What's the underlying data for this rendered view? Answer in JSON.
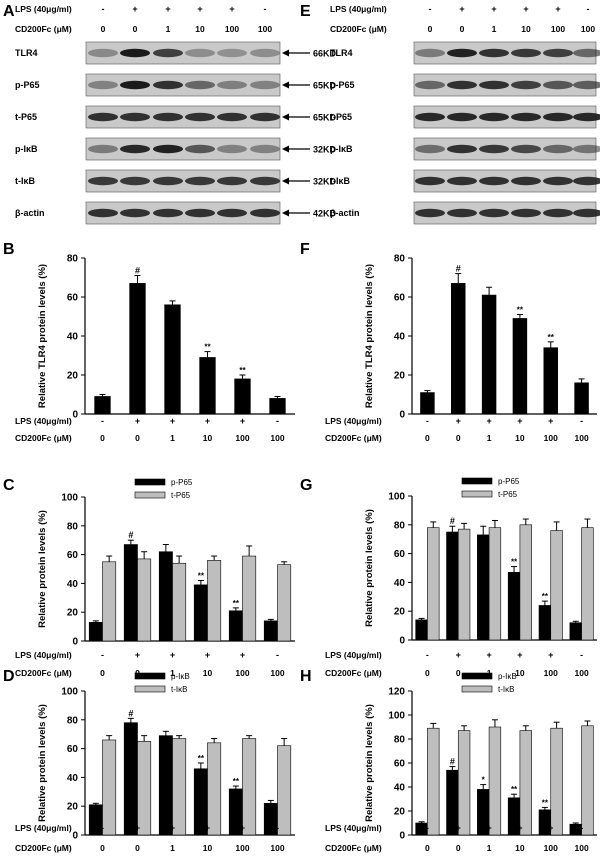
{
  "panel_letters": [
    "A",
    "B",
    "C",
    "D",
    "E",
    "F",
    "G",
    "H"
  ],
  "treatments": {
    "left": {
      "lps_label": "LPS (40μg/ml)",
      "cd_label": "CD200Fc (μM)",
      "lps": [
        "-",
        "+",
        "+",
        "+",
        "+",
        "-"
      ],
      "cd": [
        "0",
        "0",
        "1",
        "10",
        "100",
        "100"
      ]
    },
    "right": {
      "lps_label": "LPS (40μg/ml)",
      "cd_label": "CD200Fc (μM)",
      "lps": [
        "-",
        "+",
        "+",
        "+",
        "+",
        "-"
      ],
      "cd": [
        "0",
        "0",
        "1",
        "10",
        "100",
        "100"
      ]
    }
  },
  "blots": {
    "left": {
      "rows": [
        {
          "label": "TLR4",
          "kd": "66KD",
          "intensity": [
            0.25,
            1.0,
            0.75,
            0.22,
            0.2,
            0.22
          ]
        },
        {
          "label": "p-P65",
          "kd": "65KD",
          "intensity": [
            0.3,
            1.0,
            0.85,
            0.5,
            0.32,
            0.3
          ]
        },
        {
          "label": "t-P65",
          "kd": "65KD",
          "intensity": [
            0.85,
            0.85,
            0.85,
            0.85,
            0.85,
            0.85
          ]
        },
        {
          "label": "p-IκB",
          "kd": "32KD",
          "intensity": [
            0.35,
            0.9,
            0.95,
            0.6,
            0.3,
            0.3
          ]
        },
        {
          "label": "t-IκB",
          "kd": "32KD",
          "intensity": [
            0.8,
            0.8,
            0.8,
            0.8,
            0.8,
            0.8
          ]
        },
        {
          "label": "β-actin",
          "kd": "42KD",
          "intensity": [
            0.85,
            0.85,
            0.85,
            0.85,
            0.85,
            0.85
          ]
        }
      ]
    },
    "right": {
      "rows": [
        {
          "label": "TLR4",
          "kd": "",
          "intensity": [
            0.35,
            0.95,
            0.85,
            0.8,
            0.75,
            0.5
          ]
        },
        {
          "label": "p-P65",
          "kd": "",
          "intensity": [
            0.5,
            0.85,
            0.85,
            0.75,
            0.6,
            0.55
          ]
        },
        {
          "label": "t-P65",
          "kd": "",
          "intensity": [
            0.9,
            0.9,
            0.9,
            0.9,
            0.9,
            0.9
          ]
        },
        {
          "label": "p-IκB",
          "kd": "",
          "intensity": [
            0.45,
            0.85,
            0.8,
            0.7,
            0.5,
            0.4
          ]
        },
        {
          "label": "t-IκB",
          "kd": "",
          "intensity": [
            0.85,
            0.85,
            0.85,
            0.85,
            0.85,
            0.85
          ]
        },
        {
          "label": "β-actin",
          "kd": "",
          "intensity": [
            0.85,
            0.85,
            0.85,
            0.85,
            0.85,
            0.85
          ]
        }
      ]
    }
  },
  "colors": {
    "bar_black": "#000000",
    "bar_gray": "#bebebe",
    "blot_bg": "#c9c9c9",
    "band": "#1a1a1a"
  },
  "chart_data": [
    {
      "id": "B",
      "type": "bar",
      "side": "left",
      "categories": [
        "1",
        "2",
        "3",
        "4",
        "5",
        "6"
      ],
      "ylabel": "Relative TLR4 protein levels (%)",
      "ylim": [
        0,
        80
      ],
      "yticks": [
        0,
        20,
        40,
        60,
        80
      ],
      "series": [
        {
          "values": [
            9,
            67,
            56,
            29,
            18,
            8
          ],
          "errors": [
            1,
            4,
            2,
            3,
            2,
            1
          ],
          "color": "#000000"
        }
      ],
      "annotations": [
        "",
        "#",
        "",
        "**",
        "**",
        ""
      ]
    },
    {
      "id": "C",
      "type": "bar",
      "side": "left",
      "categories": [
        "1",
        "2",
        "3",
        "4",
        "5",
        "6"
      ],
      "ylabel": "Relative protein levels (%)",
      "ylim": [
        0,
        100
      ],
      "yticks": [
        0,
        20,
        40,
        60,
        80,
        100
      ],
      "legend": "top-left",
      "series": [
        {
          "name": "p-P65",
          "values": [
            13,
            67,
            62,
            39,
            21,
            14
          ],
          "errors": [
            1,
            3,
            5,
            3,
            2,
            1
          ],
          "color": "#000000"
        },
        {
          "name": "t-P65",
          "values": [
            55,
            57,
            54,
            56,
            59,
            53
          ],
          "errors": [
            4,
            5,
            5,
            3,
            7,
            2
          ],
          "color": "#bebebe"
        }
      ],
      "annotations": [
        "",
        "#",
        "",
        "**",
        "**",
        ""
      ]
    },
    {
      "id": "D",
      "type": "bar",
      "side": "left",
      "categories": [
        "1",
        "2",
        "3",
        "4",
        "5",
        "6"
      ],
      "ylabel": "Relative protein levels (%)",
      "ylim": [
        0,
        100
      ],
      "yticks": [
        0,
        20,
        40,
        60,
        80,
        100
      ],
      "legend": "top-left",
      "series": [
        {
          "name": "p-IκB",
          "values": [
            21,
            78,
            69,
            46,
            32,
            22
          ],
          "errors": [
            1,
            3,
            3,
            4,
            2,
            2
          ],
          "color": "#000000"
        },
        {
          "name": "t-IκB",
          "values": [
            66,
            65,
            67,
            64,
            67,
            62
          ],
          "errors": [
            3,
            4,
            2,
            3,
            2,
            5
          ],
          "color": "#bebebe"
        }
      ],
      "annotations": [
        "",
        "#",
        "",
        "**",
        "**",
        ""
      ]
    },
    {
      "id": "F",
      "type": "bar",
      "side": "right",
      "categories": [
        "1",
        "2",
        "3",
        "4",
        "5",
        "6"
      ],
      "ylabel": "Relative TLR4 protein levels (%)",
      "ylim": [
        0,
        80
      ],
      "yticks": [
        0,
        20,
        40,
        60,
        80
      ],
      "series": [
        {
          "values": [
            11,
            67,
            61,
            49,
            34,
            16
          ],
          "errors": [
            1,
            5,
            4,
            2,
            3,
            2
          ],
          "color": "#000000"
        }
      ],
      "annotations": [
        "",
        "#",
        "",
        "**",
        "**",
        ""
      ]
    },
    {
      "id": "G",
      "type": "bar",
      "side": "right",
      "categories": [
        "1",
        "2",
        "3",
        "4",
        "5",
        "6"
      ],
      "ylabel": "Relative protein levels (%)",
      "ylim": [
        0,
        100
      ],
      "yticks": [
        0,
        20,
        40,
        60,
        80,
        100
      ],
      "legend": "top-left",
      "series": [
        {
          "name": "p-P65",
          "values": [
            14,
            75,
            73,
            47,
            24,
            12
          ],
          "errors": [
            1,
            4,
            6,
            4,
            3,
            1
          ],
          "color": "#000000"
        },
        {
          "name": "t-P65",
          "values": [
            78,
            77,
            78,
            80,
            76,
            78
          ],
          "errors": [
            4,
            4,
            5,
            4,
            6,
            6
          ],
          "color": "#bebebe"
        }
      ],
      "annotations": [
        "",
        "#",
        "",
        "**",
        "**",
        ""
      ]
    },
    {
      "id": "H",
      "type": "bar",
      "side": "right",
      "categories": [
        "1",
        "2",
        "3",
        "4",
        "5",
        "6"
      ],
      "ylabel": "Relative protein levels (%)",
      "ylim": [
        0,
        120
      ],
      "yticks": [
        0,
        20,
        40,
        60,
        80,
        100,
        120
      ],
      "legend": "top-left",
      "series": [
        {
          "name": "p-IκB",
          "values": [
            10,
            54,
            38,
            31,
            21,
            9
          ],
          "errors": [
            1,
            3,
            4,
            3,
            2,
            1
          ],
          "color": "#000000"
        },
        {
          "name": "t-IκB",
          "values": [
            89,
            87,
            90,
            87,
            89,
            91
          ],
          "errors": [
            4,
            4,
            6,
            4,
            5,
            4
          ],
          "color": "#bebebe"
        }
      ],
      "annotations": [
        "",
        "#",
        "*",
        "**",
        "**",
        ""
      ]
    }
  ]
}
